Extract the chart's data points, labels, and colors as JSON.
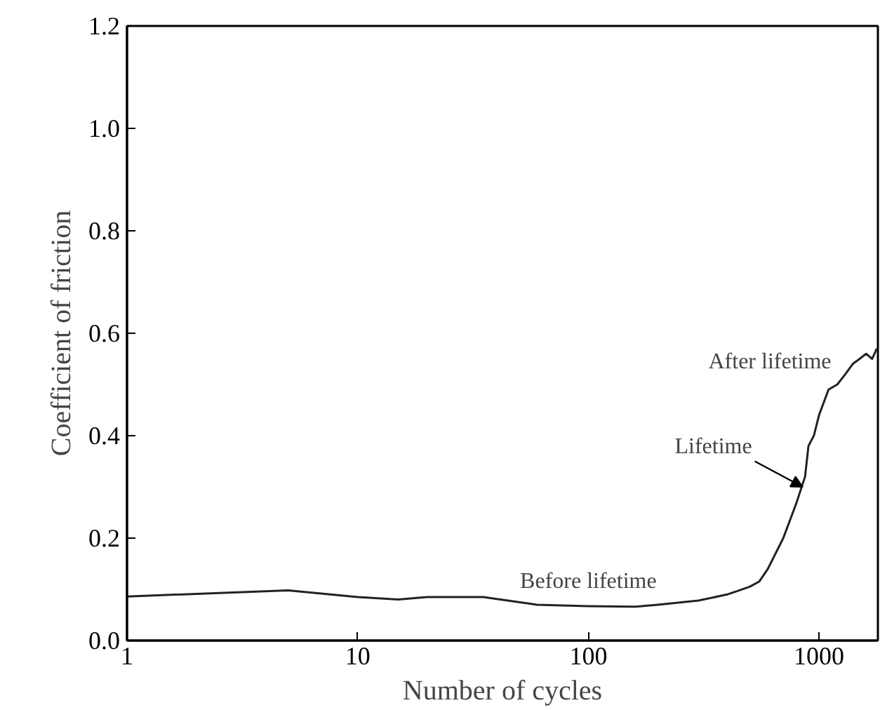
{
  "chart_data": {
    "type": "line",
    "xlabel": "Number of cycles",
    "ylabel": "Coefficient of friction",
    "log": "x",
    "xlim": [
      1,
      1800
    ],
    "xticks": [
      1,
      10,
      100,
      1000
    ],
    "ylim": [
      0,
      1.2
    ],
    "yticks": [
      {
        "value": 0,
        "label": "0.0"
      },
      {
        "value": 0.2,
        "label": "0.2"
      },
      {
        "value": 0.4,
        "label": "0.4"
      },
      {
        "value": 0.6,
        "label": "0.6"
      },
      {
        "value": 0.8,
        "label": "0.8"
      },
      {
        "value": 1.0,
        "label": "1.0"
      },
      {
        "value": 1.2,
        "label": "1.2"
      }
    ],
    "grid": false,
    "marker": "none",
    "line_style": "solid",
    "x": [
      1,
      5,
      10,
      15,
      20,
      35,
      50,
      60,
      100,
      160,
      200,
      300,
      400,
      500,
      550,
      600,
      700,
      800,
      870,
      900,
      950,
      1000,
      1100,
      1200,
      1300,
      1400,
      1500,
      1600,
      1700,
      1780
    ],
    "series": [
      {
        "color": "#222222",
        "values": [
          0.086,
          0.098,
          0.085,
          0.08,
          0.085,
          0.085,
          0.075,
          0.07,
          0.067,
          0.066,
          0.07,
          0.078,
          0.09,
          0.105,
          0.115,
          0.14,
          0.2,
          0.27,
          0.32,
          0.38,
          0.4,
          0.44,
          0.49,
          0.5,
          0.52,
          0.54,
          0.55,
          0.56,
          0.55,
          0.57
        ]
      }
    ],
    "annotations": [
      {
        "text": "Before lifetime",
        "x": 100,
        "y": 0.07
      },
      {
        "text": "Lifetime",
        "x": 850,
        "y": 0.3
      },
      {
        "text": "After lifetime",
        "x": 1300,
        "y": 0.52
      }
    ]
  }
}
